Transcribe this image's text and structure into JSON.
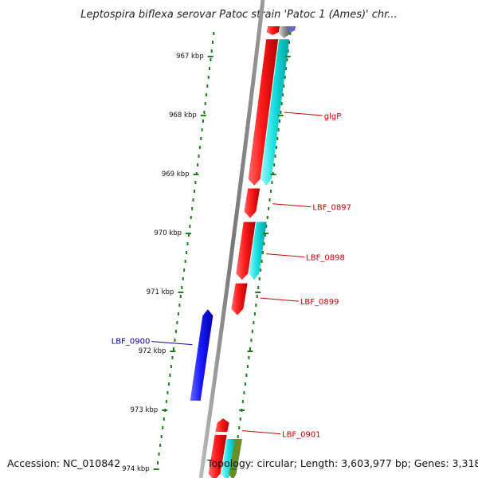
{
  "title": "Leptospira biflexa serovar Patoc strain 'Patoc 1 (Ames)' chr...",
  "footer": {
    "accession": "Accession: NC_010842",
    "stats": "Topology: circular; Length: 3,603,977 bp; Genes: 3,318"
  },
  "ticks": [
    {
      "label": "967 kbp",
      "kbp": 967
    },
    {
      "label": "968 kbp",
      "kbp": 968
    },
    {
      "label": "969 kbp",
      "kbp": 969
    },
    {
      "label": "970 kbp",
      "kbp": 970
    },
    {
      "label": "971 kbp",
      "kbp": 971
    },
    {
      "label": "972 kbp",
      "kbp": 972
    },
    {
      "label": "973 kbp",
      "kbp": 973
    },
    {
      "label": "974 kbp",
      "kbp": 974
    }
  ],
  "gene_labels": [
    {
      "text": "glgP",
      "color": "#cc0000",
      "side": "right",
      "kbp": 968.0
    },
    {
      "text": "LBF_0897",
      "color": "#cc0000",
      "side": "right",
      "kbp": 969.55
    },
    {
      "text": "LBF_0898",
      "color": "#cc0000",
      "side": "right",
      "kbp": 970.4
    },
    {
      "text": "LBF_0899",
      "color": "#cc0000",
      "side": "right",
      "kbp": 971.15
    },
    {
      "text": "LBF_0900",
      "color": "#000099",
      "side": "left",
      "kbp": 971.9
    },
    {
      "text": "LBF_0901",
      "color": "#cc0000",
      "side": "right",
      "kbp": 973.4
    }
  ],
  "features": [
    {
      "lane": "fwd-cds",
      "start": 966.5,
      "end": 966.65,
      "strand": "+",
      "color": "#ff0000"
    },
    {
      "lane": "fwd-cds",
      "start": 966.72,
      "end": 969.2,
      "strand": "+",
      "color": "#ff0000"
    },
    {
      "lane": "fwd-cds",
      "start": 969.25,
      "end": 969.75,
      "strand": "+",
      "color": "#ff0000"
    },
    {
      "lane": "fwd-cds",
      "start": 969.82,
      "end": 970.8,
      "strand": "+",
      "color": "#ff0000"
    },
    {
      "lane": "fwd-cds",
      "start": 970.86,
      "end": 971.4,
      "strand": "+",
      "color": "#ff0000"
    },
    {
      "lane": "fwd-cds",
      "start": 973.15,
      "end": 973.38,
      "strand": "-",
      "color": "#ff0000"
    },
    {
      "lane": "fwd-cds",
      "start": 973.43,
      "end": 974.2,
      "strand": "+",
      "color": "#ff0000"
    },
    {
      "lane": "rev-cds",
      "start": 971.3,
      "end": 972.85,
      "strand": "-",
      "color": "#0000ff"
    },
    {
      "lane": "fwd-gene",
      "start": 966.5,
      "end": 966.7,
      "strand": "+",
      "color": "#888888"
    },
    {
      "lane": "fwd-gene",
      "start": 966.72,
      "end": 969.2,
      "strand": "+",
      "color": "#00cccc"
    },
    {
      "lane": "fwd-gene",
      "start": 969.82,
      "end": 970.8,
      "strand": "+",
      "color": "#00e5e5"
    },
    {
      "lane": "fwd-gene",
      "start": 973.5,
      "end": 974.2,
      "strand": "+",
      "color": "#00cccc"
    },
    {
      "lane": "fwd-misc",
      "start": 966.5,
      "end": 966.6,
      "strand": "+",
      "color": "#6666cc"
    },
    {
      "lane": "fwd-misc",
      "start": 973.5,
      "end": 974.2,
      "strand": "+",
      "color": "#6b8e23"
    }
  ]
}
